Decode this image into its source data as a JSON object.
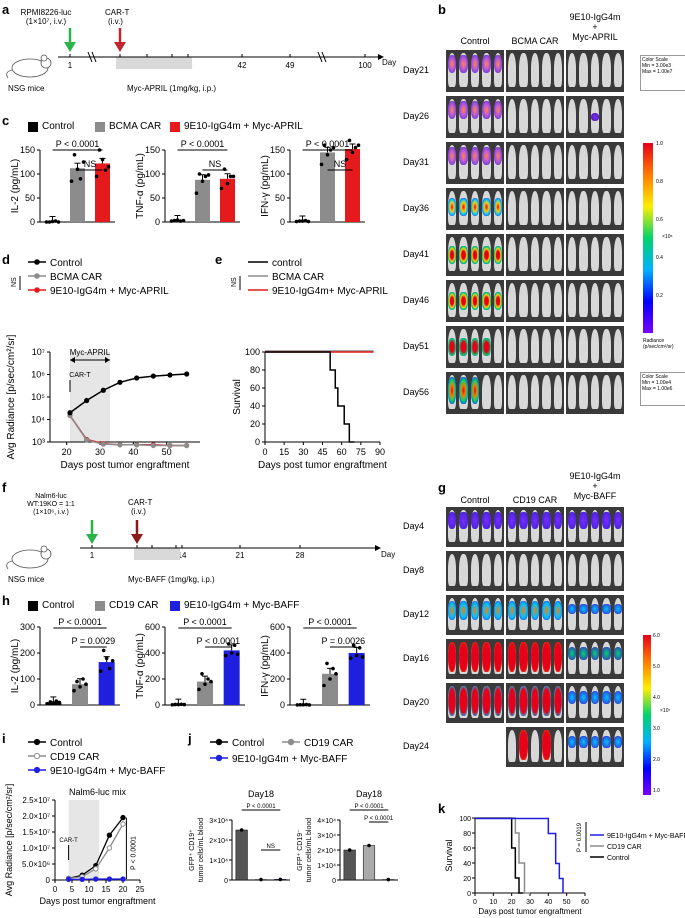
{
  "panel_labels": {
    "a": "a",
    "b": "b",
    "c": "c",
    "d": "d",
    "e": "e",
    "f": "f",
    "g": "g",
    "h": "h",
    "i": "i",
    "j": "j",
    "k": "k"
  },
  "panel_a": {
    "cell_line": "RPMI8226-luc",
    "cell_dose": "(1×10⁷, i.v.)",
    "cart_label": "CAR-T",
    "cart_route": "(i.v.)",
    "mouse_label": "NSG mice",
    "ticks": [
      "1",
      "21",
      "28",
      "33",
      "35",
      "42",
      "49",
      "100"
    ],
    "day_label": "Day",
    "treatment": "Myc-APRIL (1mg/kg, i.p.)"
  },
  "panel_b": {
    "columns": [
      "Control",
      "BCMA CAR",
      "9E10-IgG4m\n+\nMyc-APRIL"
    ],
    "days": [
      "Day21",
      "Day26",
      "Day31",
      "Day36",
      "Day41",
      "Day46",
      "Day51",
      "Day56"
    ],
    "color_scale_top": "Color Scale\nMin = 3.00e3\nMax = 1.00e7",
    "color_scale_bottom": "Color Scale\nMin = 1.00e4\nMax = 1.00e6",
    "colorbar_ticks": [
      "1.0",
      "0.8",
      "0.6",
      "0.4",
      "0.2"
    ],
    "colorbar_exp": "×10⁶",
    "radiance_label": "Radiance\n(p/sec/cm²/sr)"
  },
  "panel_c": {
    "legend": [
      "Control",
      "BCMA CAR",
      "9E10-IgG4m + Myc-APRIL"
    ],
    "colors": {
      "control": "#000000",
      "bcma": "#8c8c8c",
      "combo": "#e41a1c"
    },
    "charts": [
      {
        "ylabel": "IL-2 (pg/mL)",
        "yticks": [
          "0",
          "50",
          "100",
          "150"
        ],
        "ymax": 150,
        "values": [
          1,
          112,
          122
        ],
        "sig": "P < 0.0001",
        "ns": "NS",
        "points": [
          [
            0,
            0,
            1,
            2,
            0
          ],
          [
            85,
            140,
            110,
            90,
            125
          ],
          [
            95,
            150,
            130,
            108,
            115
          ]
        ]
      },
      {
        "ylabel": "TNF-α (pg/mL)",
        "yticks": [
          "0",
          "50",
          "100",
          "150"
        ],
        "ymax": 150,
        "values": [
          3,
          88,
          90
        ],
        "sig": "P < 0.0001",
        "ns": "NS",
        "points": [
          [
            2,
            3,
            4,
            2,
            3
          ],
          [
            60,
            100,
            85,
            95,
            98
          ],
          [
            70,
            110,
            80,
            95,
            95
          ]
        ]
      },
      {
        "ylabel": "IFN-γ (pg/mL)",
        "yticks": [
          "0",
          "50",
          "100",
          "150"
        ],
        "ymax": 150,
        "values": [
          2,
          145,
          152
        ],
        "sig": "P < 0.0001",
        "ns": "NS",
        "points": [
          [
            1,
            2,
            2,
            3,
            1
          ],
          [
            120,
            160,
            140,
            150,
            155
          ],
          [
            130,
            170,
            145,
            155,
            160
          ]
        ]
      }
    ]
  },
  "panel_d": {
    "legend": [
      "Control",
      "BCMA CAR",
      "9E10-IgG4m + Myc-APRIL"
    ],
    "ns": "NS",
    "ylabel": "Avg Radiance [p/sec/cm²/sr]",
    "xlabel": "Days post tumor engraftment",
    "yticks": [
      "10³",
      "10⁴",
      "10⁵",
      "10⁶",
      "10⁷"
    ],
    "xticks": [
      "20",
      "30",
      "40",
      "50"
    ],
    "annot_treat": "Myc-APRIL",
    "annot_cart": "CAR-T",
    "chart_data": {
      "type": "line",
      "x": [
        21,
        26,
        31,
        36,
        41,
        46,
        51,
        56
      ],
      "series": [
        {
          "name": "Control",
          "values": [
            20000.0,
            70000.0,
            200000.0,
            450000.0,
            700000.0,
            850000.0,
            950000.0,
            1050000.0
          ]
        },
        {
          "name": "BCMA CAR",
          "values": [
            15000.0,
            1200.0,
            800.0,
            750.0,
            750.0,
            700.0,
            700.0,
            700.0
          ]
        },
        {
          "name": "9E10-IgG4m + Myc-APRIL",
          "values": [
            15000.0,
            1300.0,
            850.0,
            750.0,
            750.0,
            750.0,
            700.0,
            700.0
          ]
        }
      ],
      "ylim": [
        1000.0,
        10000000.0
      ]
    }
  },
  "panel_e": {
    "legend": [
      "control",
      "BCMA CAR",
      "9E10-IgG4m+ Myc-APRIL"
    ],
    "ns": "NS",
    "ylabel": "Survival",
    "xlabel": "Days post tumor engraftment",
    "yticks": [
      "0",
      "20",
      "40",
      "60",
      "80",
      "100"
    ],
    "xticks": [
      "0",
      "15",
      "30",
      "45",
      "60",
      "75",
      "90"
    ],
    "chart_data": {
      "type": "line",
      "control": [
        [
          0,
          100
        ],
        [
          51,
          100
        ],
        [
          51,
          80
        ],
        [
          55,
          80
        ],
        [
          55,
          60
        ],
        [
          57,
          60
        ],
        [
          57,
          40
        ],
        [
          62,
          40
        ],
        [
          62,
          20
        ],
        [
          66,
          20
        ],
        [
          66,
          0
        ],
        [
          70,
          0
        ]
      ],
      "treated": [
        [
          0,
          100
        ],
        [
          85,
          100
        ]
      ]
    }
  },
  "panel_f": {
    "cell_line": "Nalm6-luc",
    "ratio": "WT:19KO = 1:1",
    "cell_dose": "(1×10⁶, i.v.)",
    "cart_label": "CAR-T",
    "cart_route": "(i.v.)",
    "mouse_label": "NSG mice",
    "ticks": [
      "1",
      "4",
      "7",
      "13",
      "14",
      "21",
      "28"
    ],
    "day_label": "Day",
    "treatment": "Myc-BAFF (1mg/kg, i.p.)"
  },
  "panel_g": {
    "columns": [
      "Control",
      "CD19 CAR",
      "9E10-IgG4m\n+\nMyc-BAFF"
    ],
    "days": [
      "Day4",
      "Day8",
      "Day12",
      "Day16",
      "Day20",
      "Day24"
    ],
    "colorbar_ticks": [
      "6.0",
      "5.0",
      "4.0",
      "3.0",
      "2.0",
      "1.0"
    ],
    "colorbar_exp": "×10⁷"
  },
  "panel_h": {
    "legend": [
      "Control",
      "CD19 CAR",
      "9E10-IgG4m + Myc-BAFF"
    ],
    "colors": {
      "control": "#000000",
      "cd19": "#8c8c8c",
      "combo": "#1f1fe0"
    },
    "charts": [
      {
        "ylabel": "IL-2 (pg/mL)",
        "yticks": [
          "0",
          "100",
          "200",
          "300"
        ],
        "ymax": 300,
        "values": [
          10,
          80,
          165
        ],
        "sig1": "P < 0.0001",
        "sig2": "P = 0.0029",
        "points": [
          [
            5,
            12,
            8,
            15,
            10
          ],
          [
            55,
            90,
            70,
            100,
            80
          ],
          [
            130,
            210,
            180,
            140,
            170
          ]
        ]
      },
      {
        "ylabel": "TNF-α (pg/mL)",
        "yticks": [
          "0",
          "200",
          "400",
          "600"
        ],
        "ymax": 600,
        "values": [
          3,
          180,
          420
        ],
        "sig1": "P < 0.0001",
        "sig2": "P < 0.0001",
        "points": [
          [
            2,
            4,
            3,
            5,
            3
          ],
          [
            120,
            240,
            160,
            200,
            180
          ],
          [
            380,
            470,
            400,
            460,
            390
          ]
        ]
      },
      {
        "ylabel": "IFN-γ (pg/mL)",
        "yticks": [
          "0",
          "200",
          "400",
          "600"
        ],
        "ymax": 600,
        "values": [
          2,
          240,
          400
        ],
        "sig1": "P < 0.0001",
        "sig2": "P = 0.0026",
        "points": [
          [
            1,
            2,
            2,
            3,
            1
          ],
          [
            150,
            320,
            200,
            280,
            240
          ],
          [
            360,
            460,
            380,
            440,
            370
          ]
        ]
      }
    ]
  },
  "panel_i": {
    "legend": [
      "Control",
      "CD19 CAR",
      "9E10-IgG4m + Myc-BAFF"
    ],
    "title": "Nalm6-luc mix",
    "ylabel": "Avg Radiance [p/sec/cm²/sr]",
    "xlabel": "Days post tumor engraftment",
    "yticks": [
      "0",
      "5.0×10⁶",
      "1.0×10⁷",
      "1.5×10⁷",
      "2.0×10⁷",
      "2.5×10⁷"
    ],
    "xticks": [
      "0",
      "5",
      "10",
      "15",
      "20",
      "25"
    ],
    "annot_cart": "CAR-T",
    "sig": "P < 0.0001",
    "chart_data": {
      "type": "line",
      "x": [
        4,
        8,
        12,
        16,
        20
      ],
      "series": [
        {
          "name": "Control",
          "values": [
            500000.0,
            1500000.0,
            4500000.0,
            14000000.0,
            19500000.0
          ]
        },
        {
          "name": "CD19 CAR",
          "values": [
            500000.0,
            1000000.0,
            3500000.0,
            10000000.0,
            17500000.0
          ]
        },
        {
          "name": "9E10-IgG4m + Myc-BAFF",
          "values": [
            200000.0,
            200000.0,
            300000.0,
            300000.0,
            300000.0
          ]
        }
      ],
      "ylim": [
        0,
        25000000.0
      ]
    }
  },
  "panel_j": {
    "legend": [
      "Control",
      "CD19 CAR",
      "9E10-IgG4m + Myc-BAFF"
    ],
    "charts": [
      {
        "title": "Day18",
        "ylabel": "GFP⁺ CD19⁺\ntumor cells/mL blood",
        "yticks": [
          "0",
          "1×10⁴",
          "2×10⁴",
          "3×10⁴"
        ],
        "ymax": 30000,
        "values": [
          25000,
          200,
          300
        ],
        "sig": "P < 0.0001",
        "ns": "NS"
      },
      {
        "title": "Day18",
        "ylabel": "GFP⁺ CD19⁻\ntumor cells/mL blood",
        "yticks": [
          "0",
          "1×10⁴",
          "2×10⁴",
          "3×10⁴",
          "4×10⁴"
        ],
        "ymax": 40000,
        "values": [
          20000,
          23000,
          300
        ],
        "sig1": "P < 0.0001",
        "sig2": "P < 0.0001"
      }
    ]
  },
  "panel_k": {
    "legend": [
      "9E10-IgG4m + Myc-BAFF",
      "CD19 CAR",
      "Control"
    ],
    "ylabel": "Survival",
    "xlabel": "Days post tumor engraftment",
    "yticks": [
      "0",
      "20",
      "40",
      "60",
      "80",
      "100"
    ],
    "xticks": [
      "0",
      "10",
      "20",
      "30",
      "40",
      "50",
      "60"
    ],
    "sig": "P = 0.0019"
  }
}
